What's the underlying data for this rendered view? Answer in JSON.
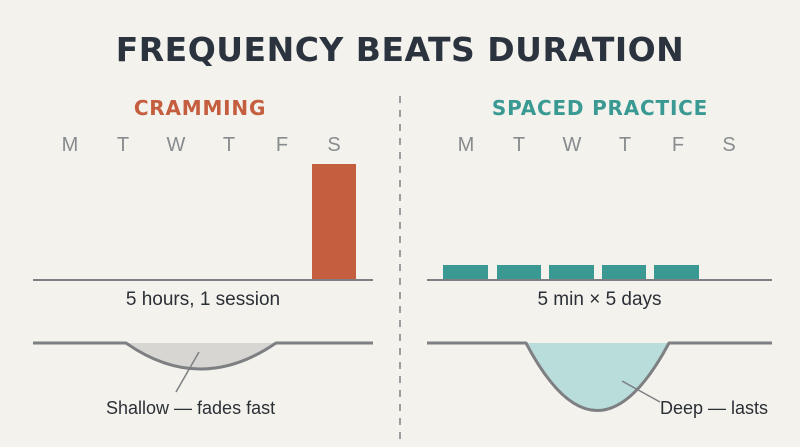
{
  "title": "FREQUENCY BEATS DURATION",
  "colors": {
    "cramming": "#c45e3e",
    "spaced": "#3a9a93",
    "spaced_fill": "#b9ddda",
    "shallow_fill": "#d7d6d2",
    "baseline": "#7d7f82"
  },
  "left": {
    "heading": "CRAMMING",
    "days": [
      "M",
      "T",
      "W",
      "T",
      "F",
      "S"
    ],
    "sessions": [
      0,
      0,
      0,
      0,
      0,
      1
    ],
    "caption": "5 hours, 1 session",
    "retention_note": "Shallow — fades fast"
  },
  "right": {
    "heading": "SPACED PRACTICE",
    "days": [
      "M",
      "T",
      "W",
      "T",
      "F",
      "S"
    ],
    "sessions": [
      1,
      1,
      1,
      1,
      1,
      0
    ],
    "caption": "5 min × 5 days",
    "retention_note": "Deep — lasts"
  }
}
